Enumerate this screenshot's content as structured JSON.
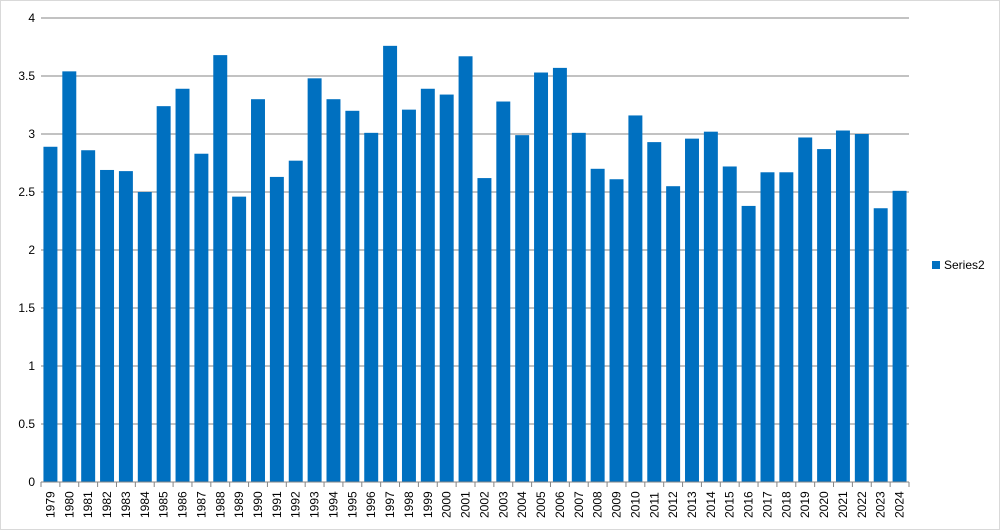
{
  "chart_data": {
    "type": "bar",
    "title": "",
    "xlabel": "",
    "ylabel": "",
    "ylim": [
      0,
      4
    ],
    "yticks": [
      "0",
      "0.5",
      "1",
      "1.5",
      "2",
      "2.5",
      "3",
      "3.5",
      "4"
    ],
    "grid": true,
    "legend_position": "right",
    "categories": [
      "1979",
      "1980",
      "1981",
      "1982",
      "1983",
      "1984",
      "1985",
      "1986",
      "1987",
      "1988",
      "1989",
      "1990",
      "1991",
      "1992",
      "1993",
      "1994",
      "1995",
      "1996",
      "1997",
      "1998",
      "1999",
      "2000",
      "2001",
      "2002",
      "2003",
      "2004",
      "2005",
      "2006",
      "2007",
      "2008",
      "2009",
      "2010",
      "2011",
      "2012",
      "2013",
      "2014",
      "2015",
      "2016",
      "2017",
      "2018",
      "2019",
      "2020",
      "2021",
      "2022",
      "2023",
      "2024"
    ],
    "series": [
      {
        "name": "Series2",
        "color": "#0070c0",
        "values": [
          2.89,
          3.54,
          2.86,
          2.69,
          2.68,
          2.5,
          3.24,
          3.39,
          2.83,
          3.68,
          2.46,
          3.3,
          2.63,
          2.77,
          3.48,
          3.3,
          3.2,
          3.01,
          3.76,
          3.21,
          3.39,
          3.34,
          3.67,
          2.62,
          3.28,
          2.99,
          3.53,
          3.57,
          3.01,
          2.7,
          2.61,
          3.16,
          2.93,
          2.55,
          2.96,
          3.02,
          2.72,
          2.38,
          2.67,
          2.67,
          2.97,
          2.87,
          3.03,
          3.0,
          2.36,
          2.51
        ]
      }
    ]
  }
}
